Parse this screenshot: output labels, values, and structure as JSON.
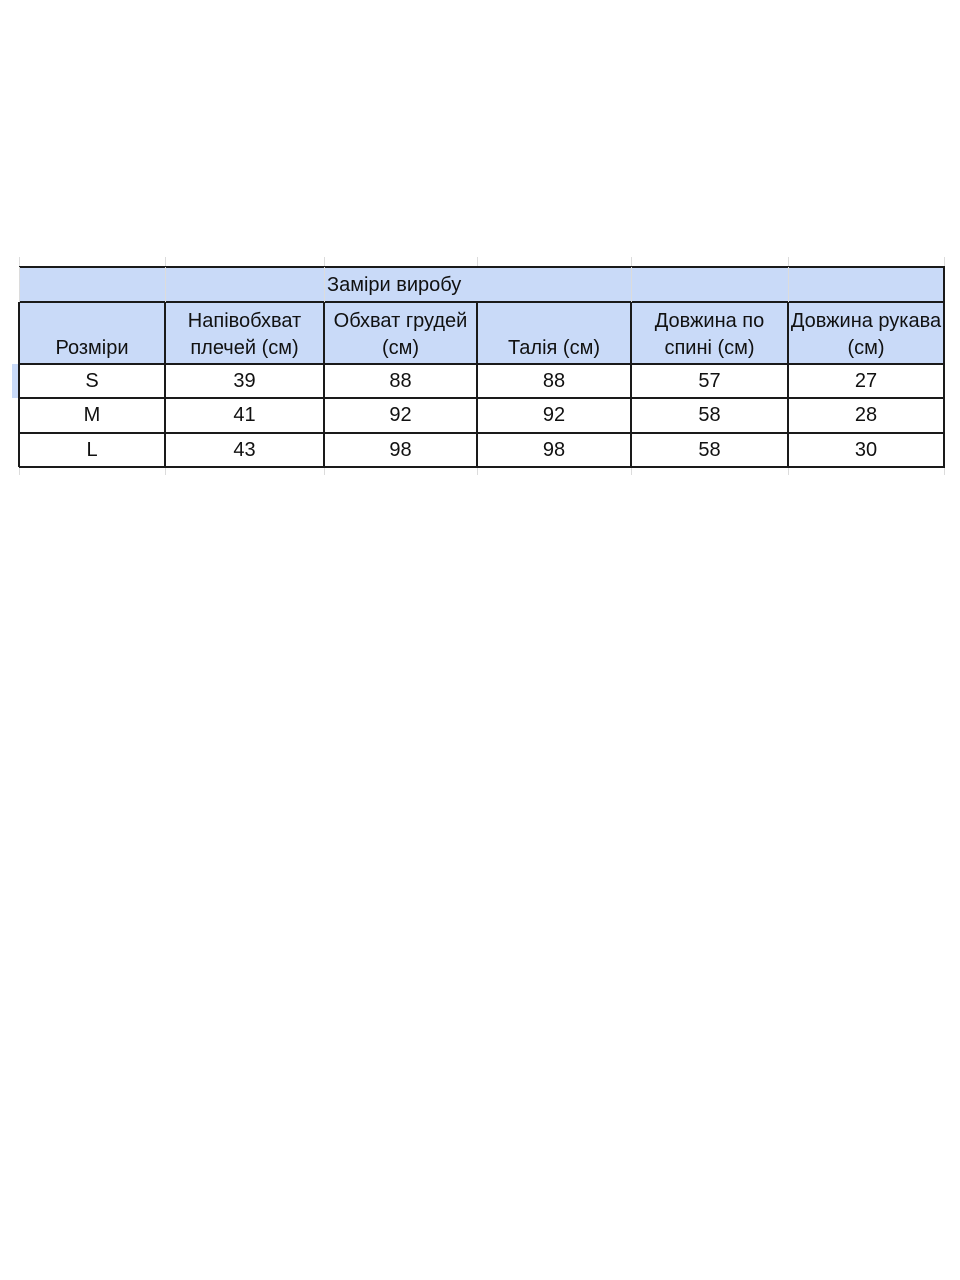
{
  "table": {
    "title": "Заміри виробу",
    "headers": [
      "Розміри",
      "Напівобхват плечей (см)",
      "Обхват грудей (см)",
      "Талія (см)",
      "Довжина по спині (см)",
      "Довжина рукава (см)"
    ],
    "rows": [
      [
        "S",
        "39",
        "88",
        "88",
        "57",
        "27"
      ],
      [
        "M",
        "41",
        "92",
        "92",
        "58",
        "28"
      ],
      [
        "L",
        "43",
        "98",
        "98",
        "58",
        "30"
      ]
    ]
  },
  "colors": {
    "header_fill": "#c9daf8",
    "border": "#1a1a1a"
  }
}
